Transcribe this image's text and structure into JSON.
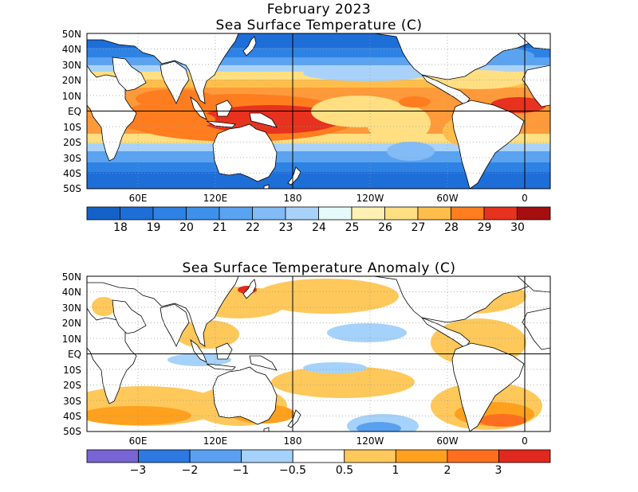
{
  "header": {
    "date": "February 2023",
    "sst_title": "Sea Surface Temperature (C)",
    "anom_title": "Sea Surface Temperature Anomaly (C)"
  },
  "axes": {
    "lat_labels": [
      "50N",
      "40N",
      "30N",
      "20N",
      "10N",
      "EQ",
      "10S",
      "20S",
      "30S",
      "40S",
      "50S"
    ],
    "lon_labels": [
      "60E",
      "120E",
      "180",
      "120W",
      "60W",
      "0"
    ]
  },
  "sst_colorbar": {
    "labels": [
      "18",
      "19",
      "20",
      "21",
      "22",
      "23",
      "24",
      "25",
      "26",
      "27",
      "28",
      "29",
      "30"
    ],
    "colors": [
      "#1462c8",
      "#1e6ed8",
      "#2d82e3",
      "#3d91ea",
      "#5aa3f0",
      "#82bbf5",
      "#a9d2fa",
      "#e6fafa",
      "#fff0b4",
      "#ffdf82",
      "#ffbe4b",
      "#ff7d1e",
      "#e6321e",
      "#a50f0f"
    ]
  },
  "anom_colorbar": {
    "labels": [
      "−3",
      "−2",
      "−1",
      "−0.5",
      "0.5",
      "1",
      "2",
      "3"
    ],
    "colors": [
      "#7864d2",
      "#2d78e1",
      "#5aa0f0",
      "#a5d2fa",
      "#ffffff",
      "#ffc85a",
      "#ffa01e",
      "#ff6e1e",
      "#e1281e"
    ]
  }
}
